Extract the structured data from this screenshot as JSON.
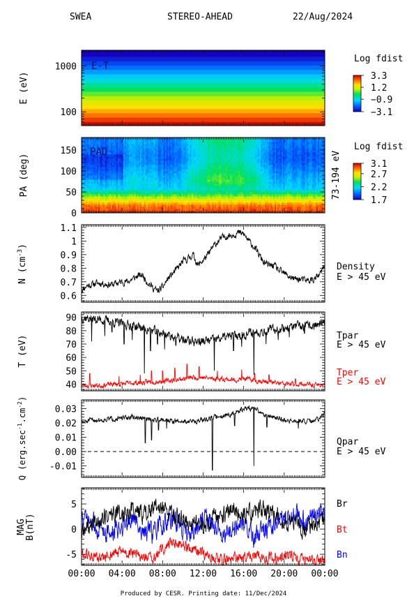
{
  "header": {
    "instrument": "SWEA",
    "spacecraft": "STEREO-AHEAD",
    "date": "22/Aug/2024"
  },
  "footer": "Produced by CESR.   Printing date: 11/Dec/2024",
  "chart_data": [
    {
      "id": "et",
      "type": "heatmap",
      "title": "E-T",
      "ylabel": "E (eV)",
      "yscale": "log",
      "ylim": [
        50,
        2200
      ],
      "yticks": [
        100,
        1000
      ],
      "colorbar": {
        "title": "Log fdist",
        "ticks": [
          3.3,
          1.2,
          -0.9,
          -3.1
        ],
        "range": [
          -3.1,
          3.3
        ]
      },
      "energy_bands": [
        55,
        68,
        85,
        105,
        130,
        160,
        200,
        250,
        310,
        390,
        480,
        600,
        750,
        930,
        1160,
        1440,
        1800
      ],
      "band_values": [
        3.2,
        2.8,
        2.4,
        2.0,
        1.6,
        1.2,
        0.8,
        0.4,
        0.0,
        -0.4,
        -0.8,
        -1.2,
        -1.6,
        -2.0,
        -2.4,
        -2.8,
        -3.1
      ]
    },
    {
      "id": "pad",
      "type": "heatmap",
      "title": "PAD",
      "ylabel": "PA (deg)",
      "ylim": [
        0,
        180
      ],
      "yticks": [
        0,
        50,
        100,
        150
      ],
      "right_label": "73-194 eV",
      "colorbar": {
        "title": "Log fdist",
        "ticks": [
          3.1,
          2.7,
          2.2,
          1.7
        ],
        "range": [
          1.7,
          3.1
        ]
      }
    },
    {
      "id": "density",
      "type": "line",
      "ylabel": "N (cm",
      "ylabel_sup": "-3",
      "ylabel_end": ")",
      "ylim": [
        0.55,
        1.12
      ],
      "yticks": [
        0.6,
        0.7,
        0.8,
        0.9,
        1.0,
        1.1
      ],
      "legend": [
        {
          "text": "Density",
          "color": "#000000"
        },
        {
          "text": "E > 45 eV",
          "color": "#000000"
        }
      ],
      "series": [
        {
          "color": "#000000",
          "x": [
            0,
            0.5,
            1,
            1.5,
            2,
            2.5,
            3,
            3.5,
            4,
            4.5,
            5,
            5.5,
            6,
            6.5,
            7,
            7.5,
            8,
            8.5,
            9,
            9.5,
            10,
            10.5,
            11,
            11.5,
            12,
            12.5,
            13,
            13.5,
            14,
            14.5,
            15,
            15.5,
            16,
            16.5,
            17,
            17.5,
            18,
            18.5,
            19,
            19.5,
            20,
            20.5,
            21,
            21.5,
            22,
            22.5,
            23,
            23.5,
            24
          ],
          "values": [
            0.64,
            0.67,
            0.68,
            0.69,
            0.69,
            0.68,
            0.68,
            0.69,
            0.7,
            0.7,
            0.72,
            0.74,
            0.75,
            0.7,
            0.66,
            0.63,
            0.66,
            0.72,
            0.76,
            0.8,
            0.85,
            0.87,
            0.9,
            0.82,
            0.86,
            0.9,
            0.96,
            1.0,
            1.03,
            1.04,
            1.05,
            1.06,
            1.05,
            1.0,
            0.96,
            0.9,
            0.84,
            0.82,
            0.82,
            0.78,
            0.76,
            0.74,
            0.72,
            0.72,
            0.71,
            0.71,
            0.72,
            0.75,
            0.82
          ],
          "noise": 0.022
        }
      ]
    },
    {
      "id": "temperature",
      "type": "line",
      "ylabel": "T (eV)",
      "ylim": [
        35,
        94
      ],
      "yticks": [
        40,
        50,
        60,
        70,
        80,
        90
      ],
      "legend": [
        {
          "text": "Tpar",
          "color": "#000000"
        },
        {
          "text": "E > 45 eV",
          "color": "#000000"
        },
        {
          "text": "Tper",
          "color": "#ff0000"
        },
        {
          "text": "E > 45 eV",
          "color": "#ff0000"
        }
      ],
      "series": [
        {
          "name": "Tpar",
          "color": "#000000",
          "x": [
            0,
            1,
            2,
            3,
            4,
            5,
            6,
            7,
            8,
            9,
            10,
            11,
            12,
            13,
            14,
            15,
            16,
            17,
            18,
            19,
            20,
            21,
            22,
            23,
            24
          ],
          "values": [
            90,
            89,
            88,
            87,
            85,
            84,
            82,
            80,
            78,
            76,
            73,
            72,
            72,
            73,
            75,
            76,
            77,
            79,
            80,
            81,
            82,
            83,
            83,
            84,
            85
          ],
          "noise": 3.0,
          "dips": [
            [
              1.0,
              72
            ],
            [
              2.3,
              76
            ],
            [
              3.0,
              79
            ],
            [
              4.2,
              70
            ],
            [
              5.0,
              73
            ],
            [
              6.2,
              48
            ],
            [
              6.8,
              65
            ],
            [
              7.5,
              70
            ],
            [
              8.2,
              66
            ],
            [
              9.3,
              69
            ],
            [
              11.8,
              70
            ],
            [
              13.1,
              50
            ],
            [
              15.0,
              65
            ],
            [
              15.8,
              68
            ],
            [
              17.0,
              47
            ],
            [
              18.2,
              70
            ],
            [
              19.4,
              73
            ],
            [
              20.5,
              75
            ],
            [
              22.0,
              78
            ]
          ]
        },
        {
          "name": "Tper",
          "color": "#ff0000",
          "x": [
            0,
            1,
            2,
            3,
            4,
            5,
            6,
            7,
            8,
            9,
            10,
            11,
            12,
            13,
            14,
            15,
            16,
            17,
            18,
            19,
            20,
            21,
            22,
            23,
            24
          ],
          "values": [
            39,
            39,
            39,
            40,
            40,
            41,
            41,
            42,
            42,
            43,
            44,
            45,
            45,
            44,
            44,
            43,
            44,
            43,
            42,
            41,
            40,
            40,
            40,
            39,
            40
          ],
          "noise": 1.6,
          "spikes": [
            [
              0.8,
              48
            ],
            [
              3.7,
              46
            ],
            [
              5.8,
              47
            ],
            [
              6.9,
              50
            ],
            [
              8.0,
              50
            ],
            [
              9.2,
              52
            ],
            [
              10.4,
              55
            ],
            [
              11.6,
              53
            ],
            [
              13.4,
              50
            ],
            [
              15.8,
              51
            ],
            [
              17.1,
              48
            ],
            [
              18.5,
              47
            ],
            [
              21.1,
              44
            ]
          ]
        }
      ]
    },
    {
      "id": "heatflux",
      "type": "line",
      "ylabel": "Q (erg.sec",
      "ylabel_sup1": "-1",
      "ylabel_mid": ".cm",
      "ylabel_sup2": "-2",
      "ylabel_end": ")",
      "ylim": [
        -0.018,
        0.036
      ],
      "yticks": [
        -0.01,
        0.0,
        0.01,
        0.02,
        0.03
      ],
      "ytick_labels": [
        "-0.01",
        "0.00",
        "0.01",
        "0.02",
        "0.03"
      ],
      "zero_line": 0,
      "legend": [
        {
          "text": "Qpar",
          "color": "#000000"
        },
        {
          "text": "E > 45 eV",
          "color": "#000000"
        }
      ],
      "series": [
        {
          "name": "Qpar",
          "color": "#000000",
          "x": [
            0,
            1,
            2,
            3,
            4,
            5,
            6,
            7,
            8,
            9,
            10,
            11,
            12,
            13,
            14,
            15,
            16,
            17,
            18,
            19,
            20,
            21,
            22,
            23,
            24
          ],
          "values": [
            0.02,
            0.022,
            0.022,
            0.023,
            0.023,
            0.024,
            0.023,
            0.022,
            0.023,
            0.021,
            0.021,
            0.021,
            0.022,
            0.024,
            0.025,
            0.026,
            0.03,
            0.03,
            0.026,
            0.024,
            0.022,
            0.021,
            0.021,
            0.021,
            0.026
          ],
          "noise": 0.0015,
          "spikes": [
            [
              6.3,
              0.006
            ],
            [
              6.9,
              0.008
            ],
            [
              7.6,
              0.015
            ],
            [
              8.4,
              0.016
            ],
            [
              12.9,
              -0.013
            ],
            [
              15.1,
              0.018
            ],
            [
              17.0,
              -0.01
            ],
            [
              18.3,
              0.017
            ],
            [
              21.4,
              0.016
            ]
          ]
        }
      ]
    },
    {
      "id": "mag",
      "type": "line",
      "ylabel": "MAG",
      "ylabel2": "B(nT)",
      "ylim": [
        -7.2,
        8.2
      ],
      "yticks": [
        -5,
        0,
        5
      ],
      "legend": [
        {
          "text": "Br",
          "color": "#000000"
        },
        {
          "text": "Bt",
          "color": "#ff0000"
        },
        {
          "text": "Bn",
          "color": "#0000ff"
        }
      ],
      "series": [
        {
          "name": "Bt",
          "color": "#ff0000",
          "x": [
            0,
            1,
            2,
            3,
            4,
            5,
            6,
            7,
            8,
            9,
            10,
            11,
            12,
            13,
            14,
            15,
            16,
            17,
            18,
            19,
            20,
            21,
            22,
            23,
            24
          ],
          "values": [
            -5,
            -5.5,
            -6,
            -5,
            -4.5,
            -5,
            -5.5,
            -6,
            -4,
            -2.5,
            -3,
            -4.5,
            -5,
            -5.5,
            -6,
            -6,
            -5.5,
            -5.5,
            -5.5,
            -6,
            -5,
            -5.5,
            -6,
            -6.5,
            -6
          ],
          "noise": 1.0
        },
        {
          "name": "Bn",
          "color": "#0000ff",
          "x": [
            0,
            1,
            2,
            3,
            4,
            5,
            6,
            7,
            8,
            9,
            10,
            11,
            12,
            13,
            14,
            15,
            16,
            17,
            18,
            19,
            20,
            21,
            22,
            23,
            24
          ],
          "values": [
            2,
            1,
            0,
            -1,
            1,
            2,
            0,
            -1,
            1,
            2,
            0,
            -1,
            2,
            1,
            -1,
            0,
            1,
            -2,
            0,
            1,
            2,
            3,
            2,
            3,
            4
          ],
          "noise": 1.8
        },
        {
          "name": "Br",
          "color": "#000000",
          "x": [
            0,
            1,
            2,
            3,
            4,
            5,
            6,
            7,
            8,
            9,
            10,
            11,
            12,
            13,
            14,
            15,
            16,
            17,
            18,
            19,
            20,
            21,
            22,
            23,
            24
          ],
          "values": [
            -1,
            1,
            2,
            3,
            3,
            4,
            3,
            4,
            4,
            3,
            2,
            1,
            1,
            2,
            3,
            4,
            3,
            3,
            4,
            3,
            2,
            1,
            0,
            1,
            1
          ],
          "noise": 1.6
        }
      ]
    }
  ],
  "x_axis": {
    "range": [
      0,
      24
    ],
    "ticks": [
      0,
      4,
      8,
      12,
      16,
      20,
      24
    ],
    "tick_labels": [
      "00:00",
      "04:00",
      "08:00",
      "12:00",
      "16:00",
      "20:00",
      "00:00"
    ]
  }
}
